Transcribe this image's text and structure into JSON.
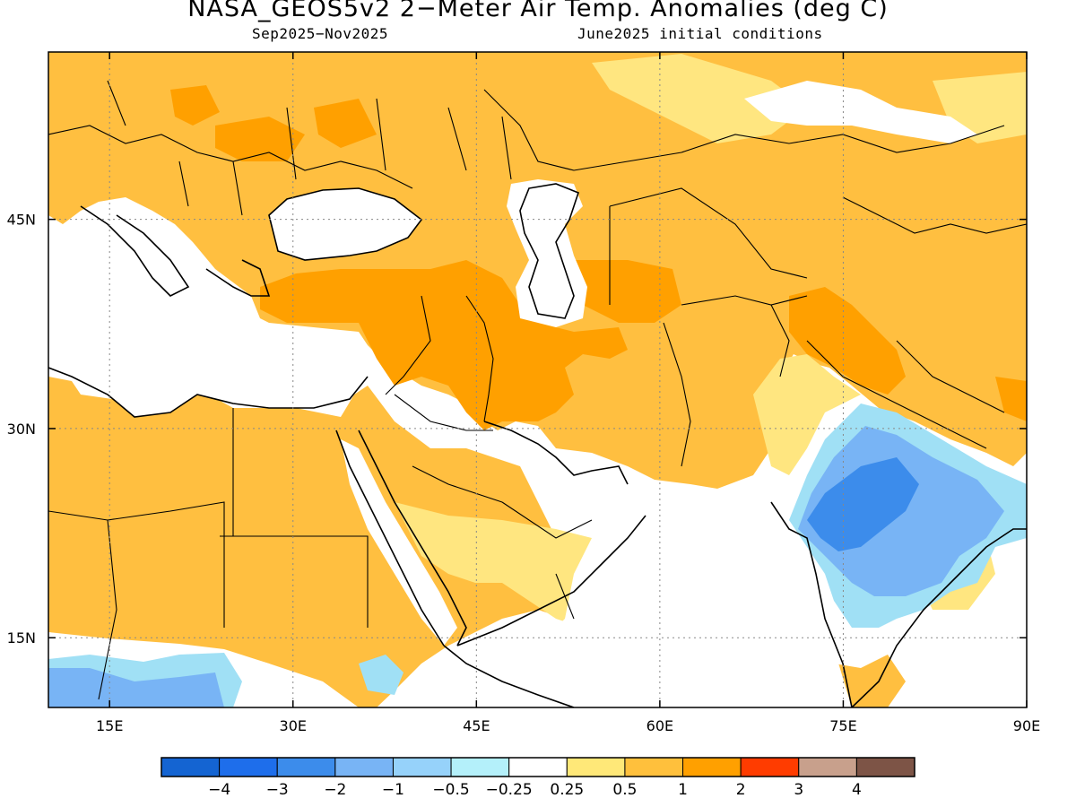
{
  "title": "NASA_GEOS5v2 2−Meter Air Temp. Anomalies (deg C)",
  "subtitle_left": "Sep2025−Nov2025",
  "subtitle_right": "June2025 initial conditions",
  "map": {
    "lon_range": [
      10,
      90
    ],
    "lat_range": [
      10,
      57
    ],
    "x_ticks": [
      {
        "lon": 15,
        "label": "15E"
      },
      {
        "lon": 30,
        "label": "30E"
      },
      {
        "lon": 45,
        "label": "45E"
      },
      {
        "lon": 60,
        "label": "60E"
      },
      {
        "lon": 75,
        "label": "75E"
      },
      {
        "lon": 90,
        "label": "90E"
      }
    ],
    "y_ticks": [
      {
        "lat": 45,
        "label": "45N"
      },
      {
        "lat": 30,
        "label": "30N"
      },
      {
        "lat": 15,
        "label": "15N"
      }
    ],
    "colors": {
      "background_no_anomaly": "#ffffff",
      "weak_warm": "#ffe680",
      "warm": "#ffbf40",
      "strong_warm": "#ffa000",
      "cool": "#a0e0f5",
      "moderate_cool": "#78b4f5",
      "strong_cool": "#3c8ceb",
      "coastline": "#000000"
    }
  },
  "colorbar": {
    "colors": [
      "#1464d2",
      "#1e6eeb",
      "#3c8ceb",
      "#78b4f5",
      "#96d2fa",
      "#b4f0fa",
      "#ffffff",
      "#ffe878",
      "#ffc03c",
      "#ffa000",
      "#ff3c00",
      "#c8a08c",
      "#7d5446"
    ],
    "labels": [
      "−4",
      "−3",
      "−2",
      "−1",
      "−0.5",
      "−0.25",
      "0.25",
      "0.5",
      "1",
      "2",
      "3",
      "4"
    ]
  }
}
